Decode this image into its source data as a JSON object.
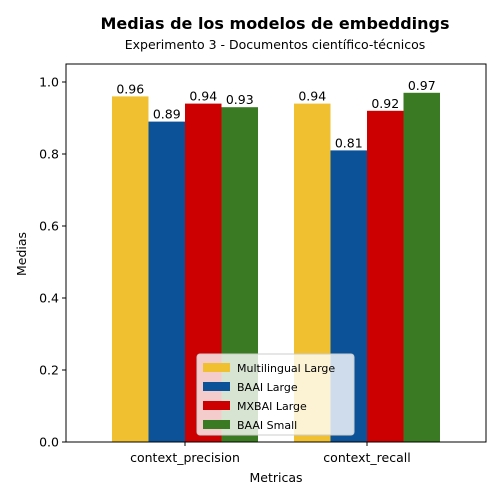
{
  "chart_data": {
    "type": "bar",
    "title": "Medias de los modelos de embeddings",
    "subtitle": "Experimento 3 - Documentos científico-técnicos",
    "xlabel": "Metricas",
    "ylabel": "Medias",
    "ylim": [
      0,
      1.05
    ],
    "yticks": [
      "0.0",
      "0.2",
      "0.4",
      "0.6",
      "0.8",
      "1.0"
    ],
    "categories": [
      "context_precision",
      "context_recall"
    ],
    "series": [
      {
        "name": "Multilingual Large",
        "color": "#f0c030",
        "values": [
          0.96,
          0.94
        ],
        "labels": [
          "0.96",
          "0.94"
        ]
      },
      {
        "name": "BAAI Large",
        "color": "#0c5299",
        "values": [
          0.89,
          0.81
        ],
        "labels": [
          "0.89",
          "0.81"
        ]
      },
      {
        "name": "MXBAI Large",
        "color": "#cc0000",
        "values": [
          0.94,
          0.92
        ],
        "labels": [
          "0.94",
          "0.92"
        ]
      },
      {
        "name": "BAAI Small",
        "color": "#3a7a22",
        "values": [
          0.93,
          0.97
        ],
        "labels": [
          "0.93",
          "0.97"
        ]
      }
    ],
    "grid": false,
    "legend_position": "lower-center"
  }
}
